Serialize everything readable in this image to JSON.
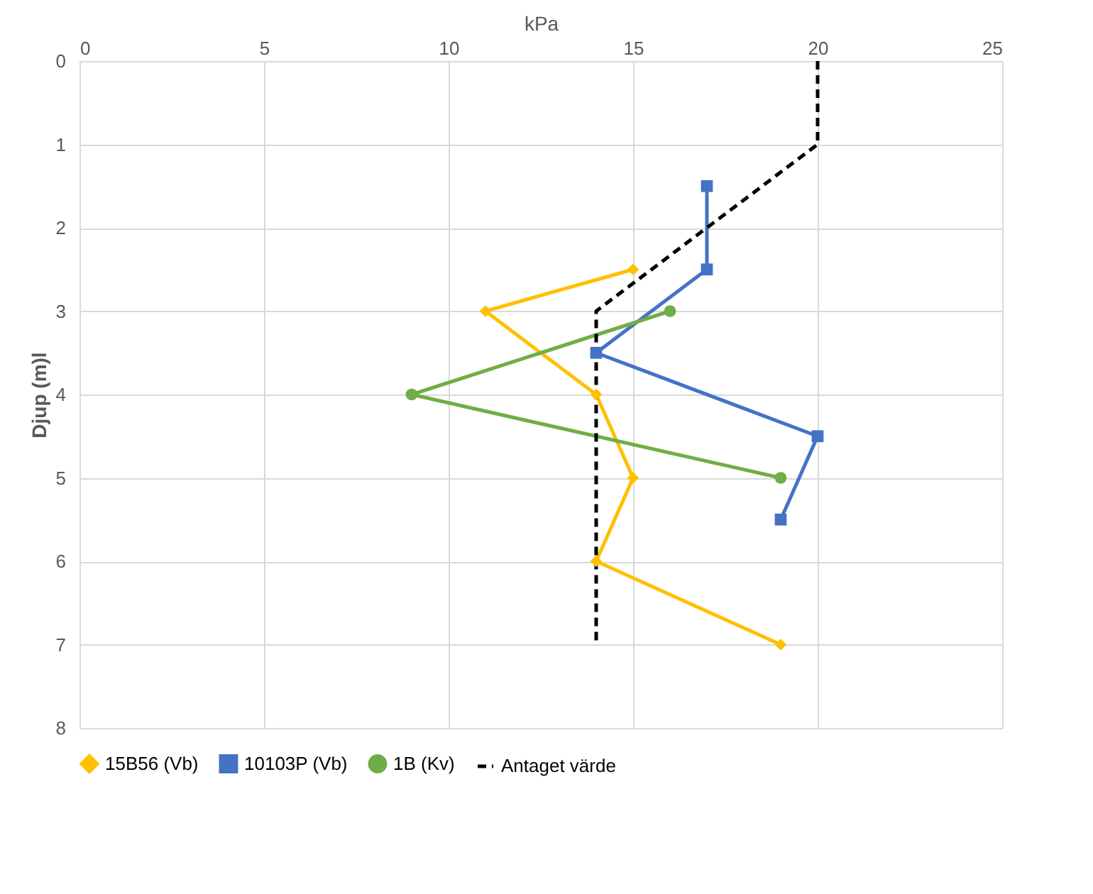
{
  "chart_data": {
    "type": "line",
    "xlabel": "kPa",
    "ylabel": "Djup (m)l",
    "xlim": [
      0,
      25
    ],
    "xticks": [
      0,
      5,
      10,
      15,
      20,
      25
    ],
    "ylim": [
      8,
      0
    ],
    "yticks": [
      0,
      1,
      2,
      3,
      4,
      5,
      6,
      7,
      8
    ],
    "grid": true,
    "legend": "bottom",
    "series": [
      {
        "name": "15B56 (Vb)",
        "color": "#ffc000",
        "marker": "diamond",
        "line_style": "solid",
        "x": [
          15,
          11,
          14,
          15,
          14,
          19
        ],
        "values": [
          2.5,
          3,
          4,
          5,
          6,
          7
        ]
      },
      {
        "name": "10103P (Vb)",
        "color": "#4472c4",
        "marker": "square",
        "line_style": "solid",
        "x": [
          17,
          17,
          14,
          20,
          19
        ],
        "values": [
          1.5,
          2.5,
          3.5,
          4.5,
          5.5
        ]
      },
      {
        "name": "1B (Kv)",
        "color": "#70ad47",
        "marker": "circle",
        "line_style": "solid",
        "x": [
          16,
          9,
          19
        ],
        "values": [
          3,
          4,
          5
        ]
      },
      {
        "name": "Antaget värde",
        "color": "#000000",
        "marker": "none",
        "line_style": "dashed",
        "x": [
          20,
          20,
          14,
          14
        ],
        "values": [
          0,
          1,
          3,
          7
        ]
      }
    ]
  }
}
